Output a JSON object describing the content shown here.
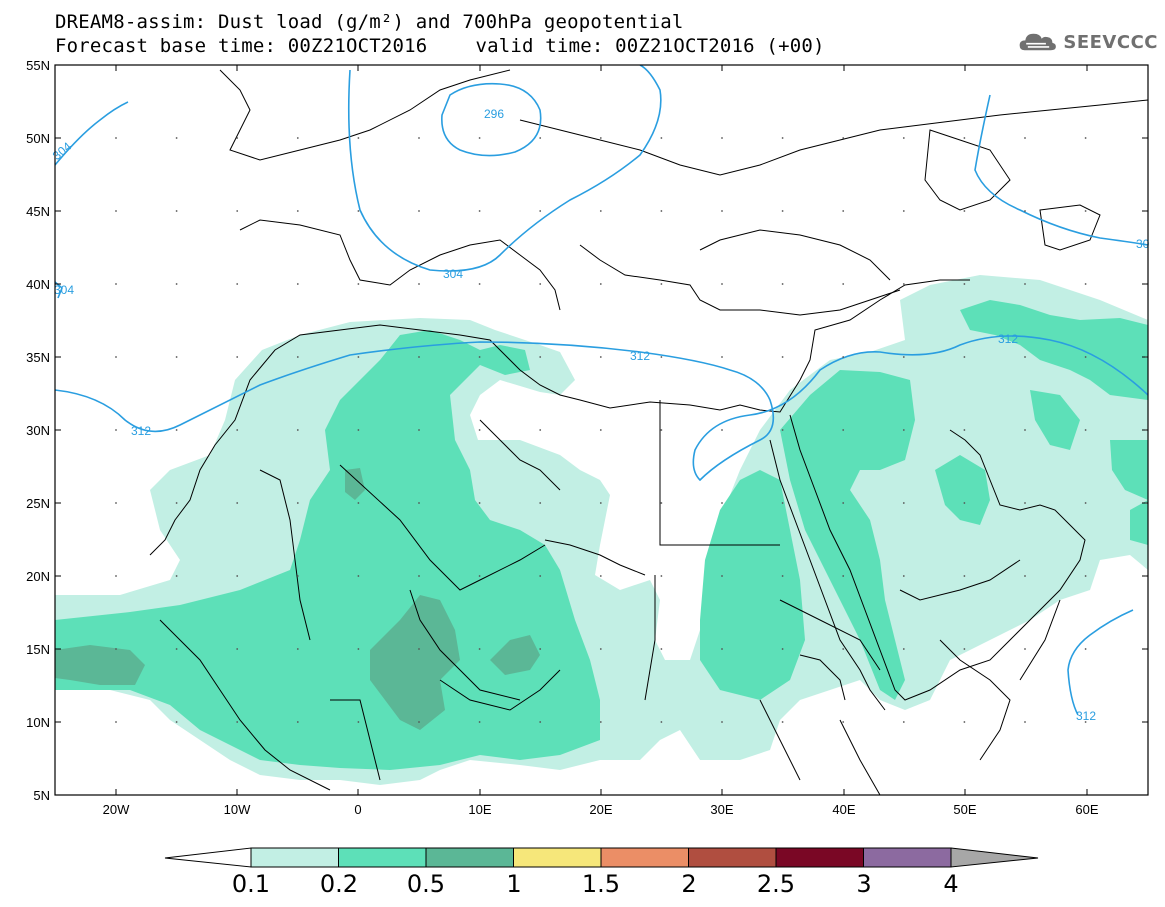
{
  "title": {
    "line1": "DREAM8-assim: Dust load (g/m²) and 700hPa geopotential",
    "base_time": "Forecast base time: 00Z21OCT2016",
    "valid_time": "valid time: 00Z21OCT2016 (+00)"
  },
  "logo": {
    "icon": "cloud-icon",
    "text": "SEEVCCC"
  },
  "map": {
    "lat_labels": [
      "55N",
      "50N",
      "45N",
      "40N",
      "35N",
      "30N",
      "25N",
      "20N",
      "15N",
      "10N",
      "5N"
    ],
    "lon_labels": [
      "20W",
      "10W",
      "0",
      "10E",
      "20E",
      "30E",
      "40E",
      "50E",
      "60E"
    ],
    "contour_labels": [
      "296",
      "304",
      "304",
      "304",
      "30",
      "312",
      "312",
      "312",
      "312"
    ]
  },
  "colorbar": {
    "colors": [
      "#c2efe4",
      "#5de0b8",
      "#5bb796",
      "#f6e77a",
      "#eb8e66",
      "#b04e40",
      "#7a0725",
      "#8c6aa0"
    ],
    "under_color": "#ffffff",
    "over_color": "#a7a7a7",
    "tick_labels": [
      "0.1",
      "0.2",
      "0.5",
      "1",
      "1.5",
      "2",
      "2.5",
      "3",
      "4"
    ]
  }
}
